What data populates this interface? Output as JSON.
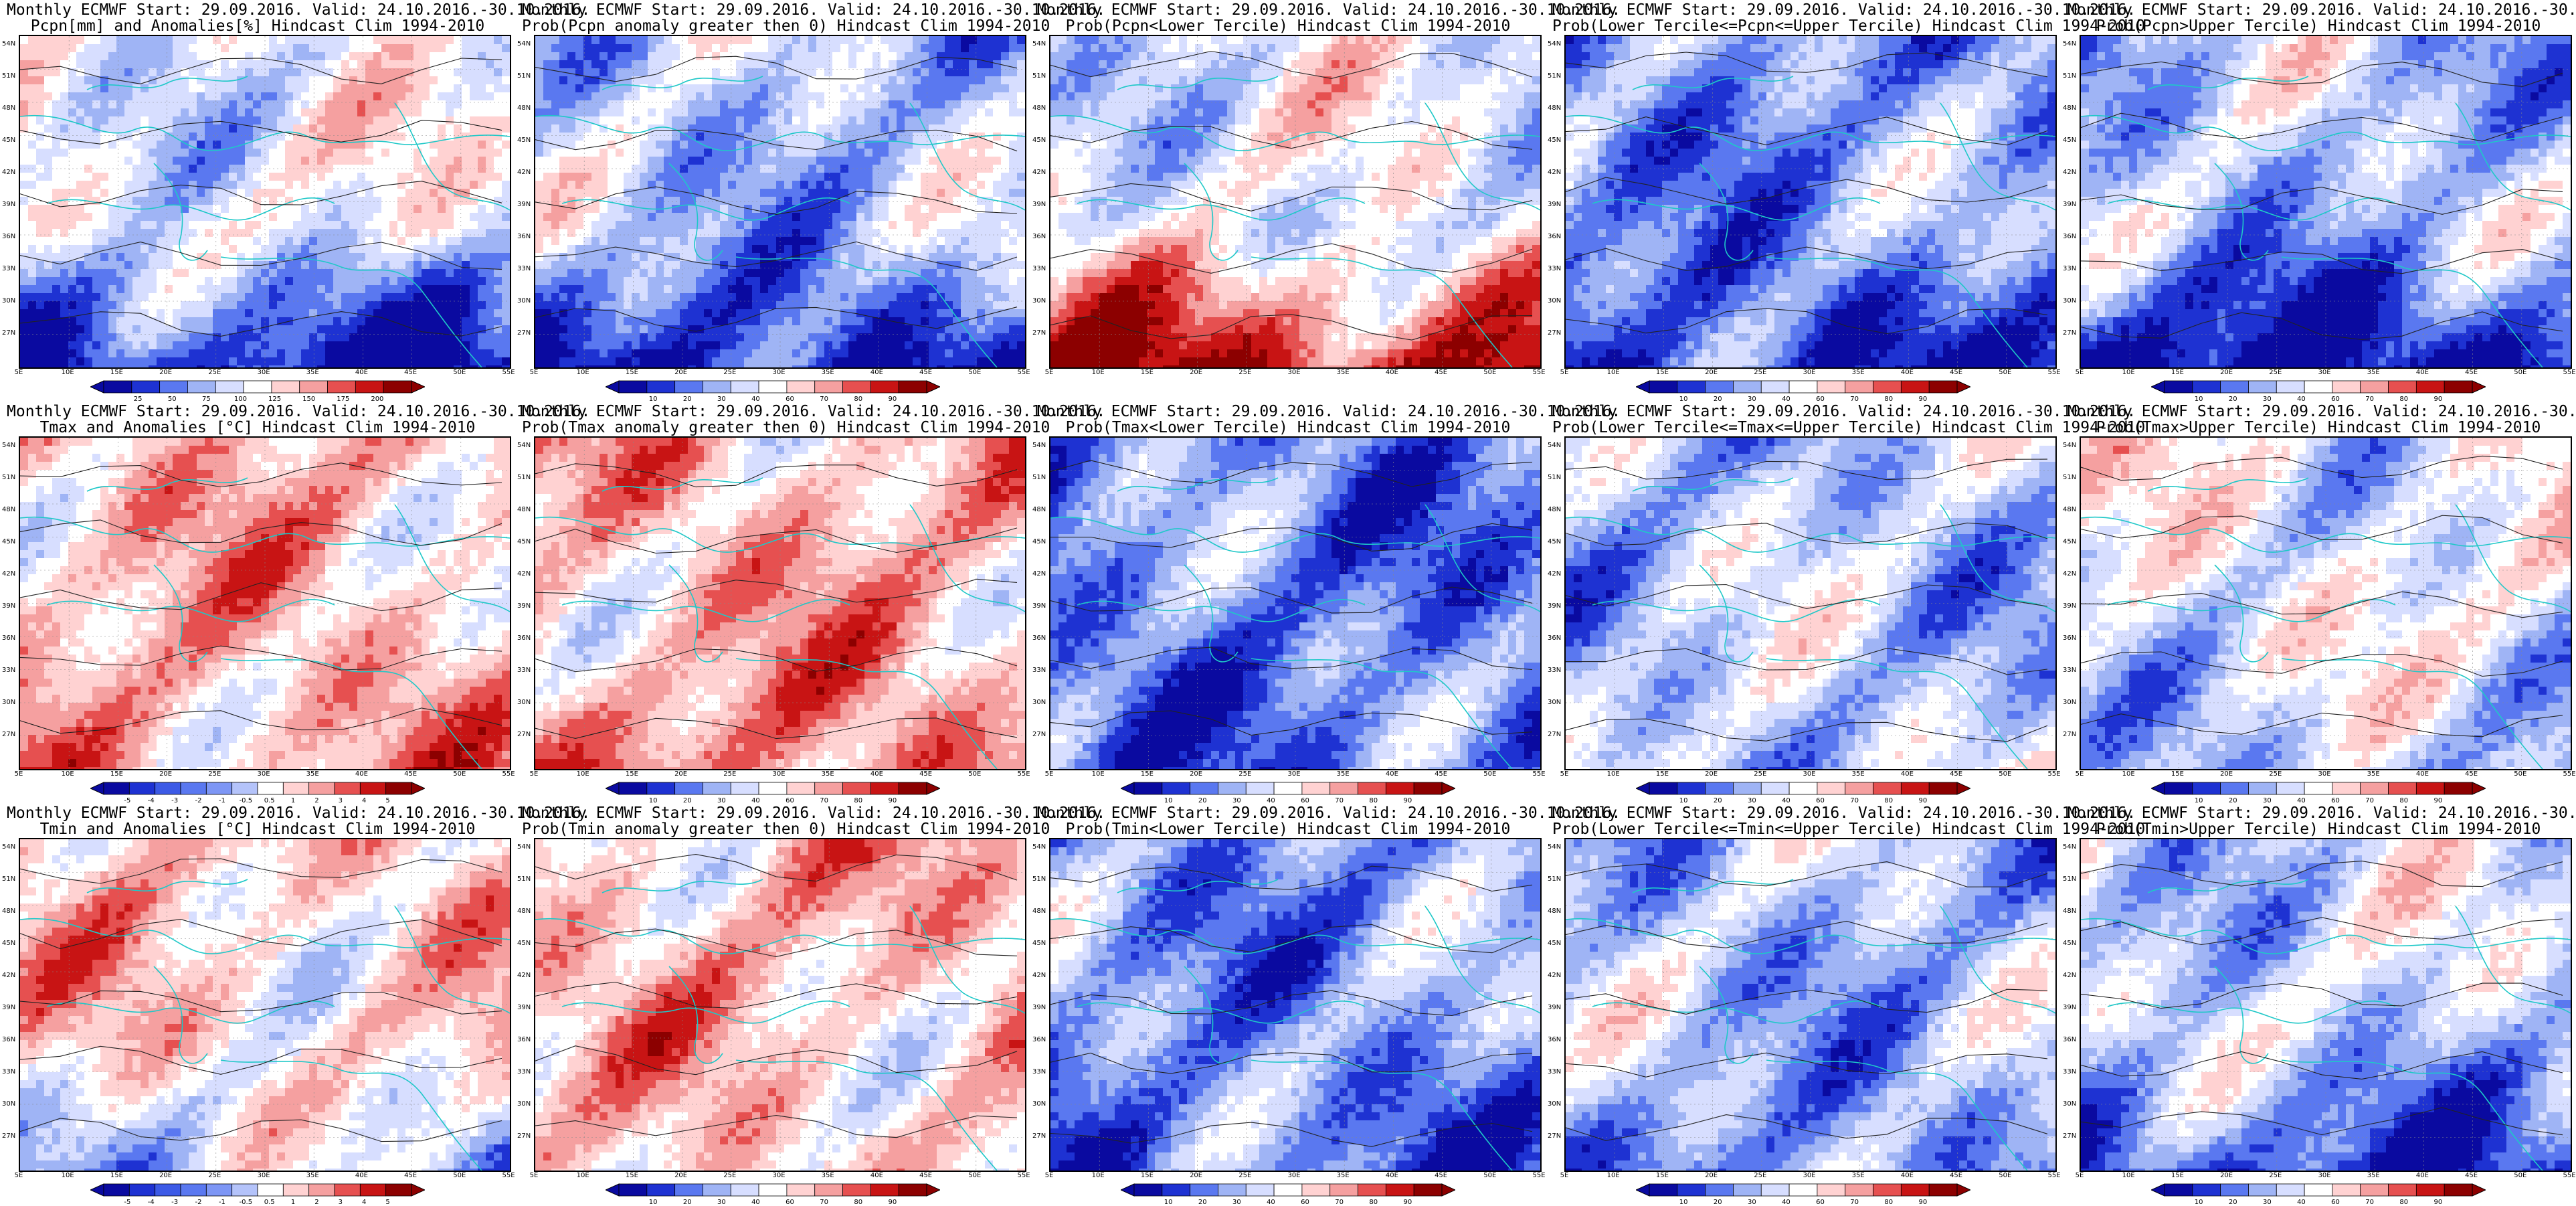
{
  "header": "Monthly ECMWF Start: 29.09.2016. Valid: 24.10.2016.-30.10.2016.",
  "axes": {
    "lat_labels": [
      "54N",
      "51N",
      "48N",
      "45N",
      "42N",
      "39N",
      "36N",
      "33N",
      "30N",
      "27N"
    ],
    "lon_labels": [
      "5E",
      "10E",
      "15E",
      "20E",
      "25E",
      "30E",
      "35E",
      "40E",
      "45E",
      "50E",
      "55E"
    ]
  },
  "colorbars": {
    "prob": {
      "labels": [
        "10",
        "20",
        "30",
        "40",
        "60",
        "70",
        "80",
        "90"
      ],
      "colors": [
        "#0a0aa0",
        "#1e32d2",
        "#5a78f0",
        "#9fb4f5",
        "#d7deff",
        "#ffffff",
        "#ffd2d2",
        "#f5a0a0",
        "#e65050",
        "#c81414",
        "#8c0000"
      ]
    },
    "pcpn": {
      "labels": [
        "25",
        "50",
        "75",
        "100",
        "125",
        "150",
        "175",
        "200"
      ],
      "colors": [
        "#0a0aa0",
        "#1e32d2",
        "#5a78f0",
        "#9fb4f5",
        "#d7deff",
        "#ffffff",
        "#ffd2d2",
        "#f5a0a0",
        "#e65050",
        "#c81414",
        "#8c0000"
      ]
    },
    "temp": {
      "labels": [
        "-5",
        "-4",
        "-3",
        "-2",
        "-1",
        "-0.5",
        "0.5",
        "1",
        "2",
        "3",
        "4",
        "5"
      ],
      "colors": [
        "#0a0aa0",
        "#1e32d2",
        "#3c5ae6",
        "#5a78f0",
        "#7d96f5",
        "#b4c3fa",
        "#ffffff",
        "#ffd2d2",
        "#f5a0a0",
        "#e65050",
        "#c81414",
        "#8c0000"
      ]
    }
  },
  "panels": [
    {
      "title2": "Pcpn[mm] and Anomalies[%] Hindcast Clim 1994-2010",
      "cbar": "pcpn",
      "bias": -0.15,
      "south": -1.1,
      "seed": 11
    },
    {
      "title2": "Prob(Pcpn anomaly greater then 0) Hindcast Clim 1994-2010",
      "cbar": "prob",
      "bias": -0.55,
      "south": -0.7,
      "seed": 12
    },
    {
      "title2": "Prob(Pcpn<Lower Tercile) Hindcast Clim 1994-2010",
      "cbar": "",
      "bias": -0.2,
      "south": 1.2,
      "seed": 13
    },
    {
      "title2": "Prob(Lower Tercile<=Pcpn<=Upper Tercile) Hindcast Clim 1994-2010",
      "cbar": "prob",
      "bias": -0.85,
      "south": -0.4,
      "seed": 14
    },
    {
      "title2": "Prob(Pcpn>Upper Tercile) Hindcast Clim 1994-2010",
      "cbar": "prob",
      "bias": -0.55,
      "south": -0.9,
      "seed": 15
    },
    {
      "title2": "Tmax and Anomalies [°C] Hindcast Clim 1994-2010",
      "cbar": "temp",
      "bias": 0.45,
      "south": 0.1,
      "seed": 21
    },
    {
      "title2": "Prob(Tmax anomaly greater then 0) Hindcast Clim 1994-2010",
      "cbar": "prob",
      "bias": 0.5,
      "south": 0.2,
      "seed": 22
    },
    {
      "title2": "Prob(Tmax<Lower Tercile) Hindcast Clim 1994-2010",
      "cbar": "prob",
      "bias": -1.0,
      "south": -0.1,
      "seed": 23
    },
    {
      "title2": "Prob(Lower Tercile<=Tmax<=Upper Tercile) Hindcast Clim 1994-2010",
      "cbar": "prob",
      "bias": -0.55,
      "south": 0.1,
      "seed": 24
    },
    {
      "title2": "Prob(Tmax>Upper Tercile) Hindcast Clim 1994-2010",
      "cbar": "prob",
      "bias": -0.15,
      "south": -0.3,
      "seed": 25
    },
    {
      "title2": "Tmin and Anomalies [°C] Hindcast Clim 1994-2010",
      "cbar": "temp",
      "bias": 0.35,
      "south": -0.5,
      "seed": 31
    },
    {
      "title2": "Prob(Tmin anomaly greater then 0) Hindcast Clim 1994-2010",
      "cbar": "prob",
      "bias": 0.45,
      "south": -0.1,
      "seed": 32
    },
    {
      "title2": "Prob(Tmin<Lower Tercile) Hindcast Clim 1994-2010",
      "cbar": "prob",
      "bias": -0.85,
      "south": -0.2,
      "seed": 33
    },
    {
      "title2": "Prob(Lower Tercile<=Tmin<=Upper Tercile) Hindcast Clim 1994-2010",
      "cbar": "prob",
      "bias": -0.6,
      "south": -0.2,
      "seed": 34
    },
    {
      "title2": "Prob(Tmin>Upper Tercile) Hindcast Clim 1994-2010",
      "cbar": "prob",
      "bias": -0.4,
      "south": -0.7,
      "seed": 35
    }
  ]
}
